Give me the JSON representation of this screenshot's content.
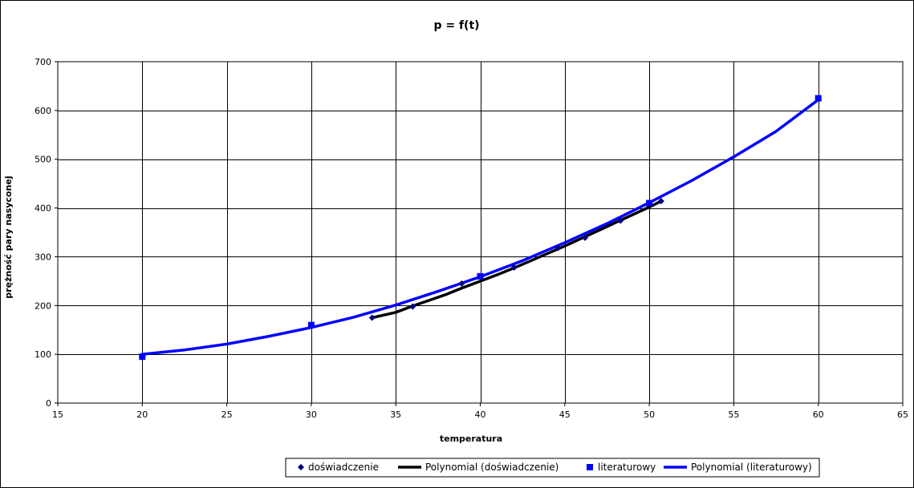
{
  "chart_data": {
    "type": "scatter",
    "title": "p = f(t)",
    "xlabel": "temperatura",
    "ylabel": "prężność pary nasyconej",
    "xlim": [
      15,
      65
    ],
    "ylim": [
      0,
      700
    ],
    "xticks": [
      15,
      20,
      25,
      30,
      35,
      40,
      45,
      50,
      55,
      60,
      65
    ],
    "yticks": [
      0,
      100,
      200,
      300,
      400,
      500,
      600,
      700
    ],
    "x_grid_step": 5,
    "grid": true,
    "legend_position": "bottom",
    "series": [
      {
        "name": "doświadczenie",
        "kind": "markers",
        "marker": "diamond",
        "color": "#000080",
        "x": [
          33.6,
          36.0,
          38.9,
          42.0,
          44.6,
          46.2,
          48.3,
          50.7
        ],
        "y": [
          175,
          198,
          245,
          278,
          318,
          339,
          374,
          414
        ]
      },
      {
        "name": "Polynomial (doświadczenie)",
        "kind": "trendline",
        "color": "#000000",
        "of": "doświadczenie",
        "x": [
          33.6,
          35.0,
          36.0,
          37.0,
          38.0,
          39.0,
          40.0,
          41.0,
          42.0,
          43.0,
          44.0,
          45.0,
          46.0,
          47.0,
          48.0,
          49.0,
          50.0,
          50.7
        ],
        "y": [
          175,
          186,
          199,
          211,
          223,
          237,
          250,
          263,
          277,
          292,
          307,
          322,
          338,
          354,
          370,
          386,
          402,
          414
        ]
      },
      {
        "name": "literaturowy",
        "kind": "markers",
        "marker": "square",
        "color": "#0000ff",
        "x": [
          20,
          30,
          40,
          50,
          60
        ],
        "y": [
          95,
          160,
          260,
          410,
          625
        ]
      },
      {
        "name": "Polynomial (literaturowy)",
        "kind": "trendline",
        "color": "#0000ff",
        "of": "literaturowy",
        "x": [
          20,
          22.5,
          25,
          27.5,
          30,
          32.5,
          35,
          37.5,
          40,
          42.5,
          45,
          47.5,
          50,
          52.5,
          55,
          57.5,
          60
        ],
        "y": [
          100,
          109,
          121,
          137,
          155,
          176,
          201,
          229,
          259,
          292,
          329,
          368,
          411,
          456,
          505,
          557,
          622
        ]
      }
    ],
    "legend": [
      {
        "label": "doświadczenie",
        "symbol": "diamond",
        "color": "#000080"
      },
      {
        "label": "Polynomial (doświadczenie)",
        "symbol": "line",
        "color": "#000000"
      },
      {
        "label": "literaturowy",
        "symbol": "square",
        "color": "#0000ff"
      },
      {
        "label": "Polynomial (literaturowy)",
        "symbol": "line",
        "color": "#0000ff"
      }
    ]
  }
}
